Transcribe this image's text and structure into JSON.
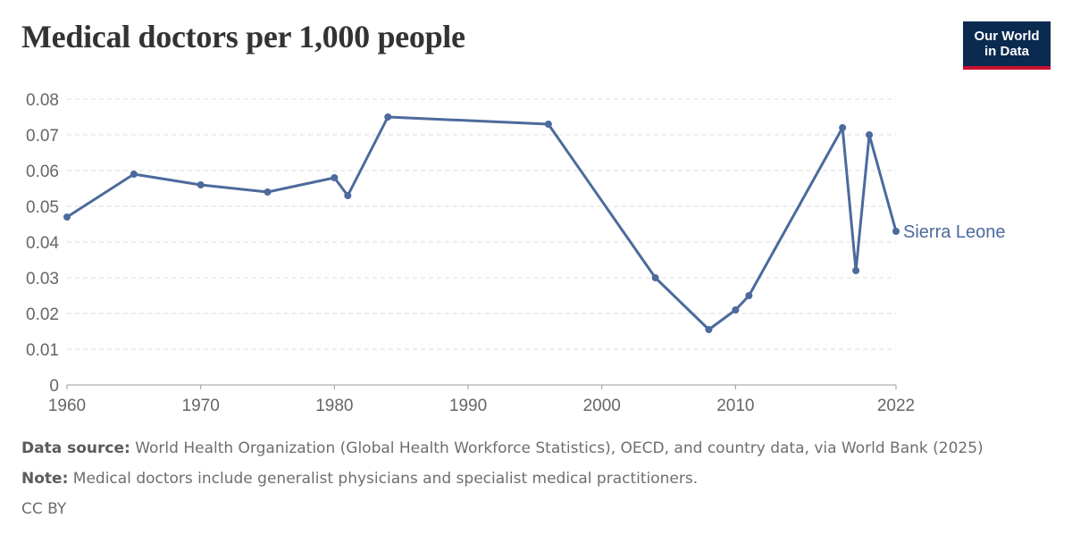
{
  "header": {
    "title": "Medical doctors per 1,000 people",
    "logo_line1": "Our World",
    "logo_line2": "in Data"
  },
  "footer": {
    "source_label": "Data source:",
    "source_text": "World Health Organization (Global Health Workforce Statistics), OECD, and country data, via World Bank (2025)",
    "note_label": "Note:",
    "note_text": "Medical doctors include generalist physicians and specialist medical practitioners.",
    "license": "CC BY"
  },
  "colors": {
    "series": "#4c6a9c",
    "grid": "#dddddd",
    "axis_text": "#666666",
    "logo_bg": "#0b2a4f",
    "logo_accent": "#c8102e"
  },
  "chart_data": {
    "type": "line",
    "title": "Medical doctors per 1,000 people",
    "xlabel": "",
    "ylabel": "",
    "xlim": [
      1960,
      2022
    ],
    "ylim": [
      0,
      0.08
    ],
    "grid": true,
    "x_ticks": [
      "1960",
      "1970",
      "1980",
      "1990",
      "2000",
      "2010",
      "2022"
    ],
    "y_ticks": [
      "0",
      "0.01",
      "0.02",
      "0.03",
      "0.04",
      "0.05",
      "0.06",
      "0.07",
      "0.08"
    ],
    "series": [
      {
        "name": "Sierra Leone",
        "x": [
          1960,
          1965,
          1970,
          1975,
          1980,
          1981,
          1984,
          1996,
          2004,
          2008,
          2010,
          2011,
          2018,
          2019,
          2020,
          2022
        ],
        "y": [
          0.047,
          0.059,
          0.056,
          0.054,
          0.058,
          0.053,
          0.075,
          0.073,
          0.03,
          0.0155,
          0.021,
          0.025,
          0.072,
          0.032,
          0.07,
          0.043
        ]
      }
    ]
  }
}
